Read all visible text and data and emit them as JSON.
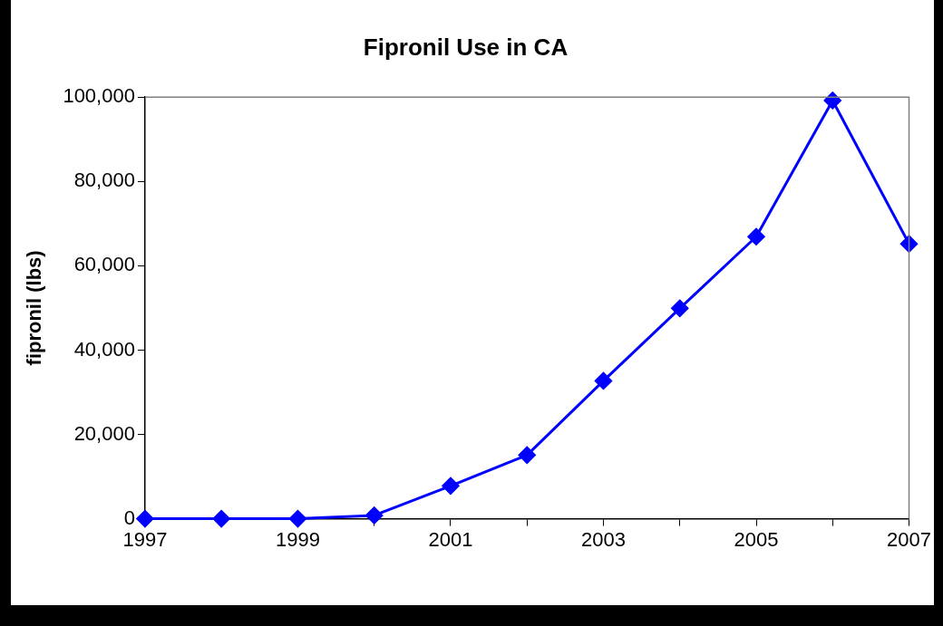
{
  "chart_data": {
    "type": "line",
    "title": "Fipronil Use in CA",
    "ylabel": "fipronil (lbs)",
    "x": [
      1997,
      1998,
      1999,
      2000,
      2001,
      2002,
      2003,
      2004,
      2005,
      2006,
      2007
    ],
    "series": [
      {
        "color": "#0000ff",
        "values": [
          0,
          0,
          0,
          800,
          7800,
          15100,
          32700,
          49900,
          66900,
          99200,
          65200
        ]
      }
    ],
    "xlim": [
      1997,
      2007
    ],
    "xticks": [
      1997,
      {
        "value": 1998,
        "label": null
      },
      1999,
      {
        "value": 2000,
        "label": null
      },
      2001,
      {
        "value": 2002,
        "label": null
      },
      2003,
      {
        "value": 2004,
        "label": null
      },
      2005,
      {
        "value": 2006,
        "label": null
      },
      2007
    ],
    "ylim": [
      0,
      100000
    ],
    "yticks": [
      0,
      {
        "value": 20000,
        "label": "20,000"
      },
      {
        "value": 40000,
        "label": "40,000"
      },
      {
        "value": 60000,
        "label": "60,000"
      },
      {
        "value": 80000,
        "label": "80,000"
      },
      {
        "value": 100000,
        "label": "100,000"
      }
    ],
    "grid": false,
    "legend": false,
    "marker": "diamond",
    "line_style": "solid"
  }
}
